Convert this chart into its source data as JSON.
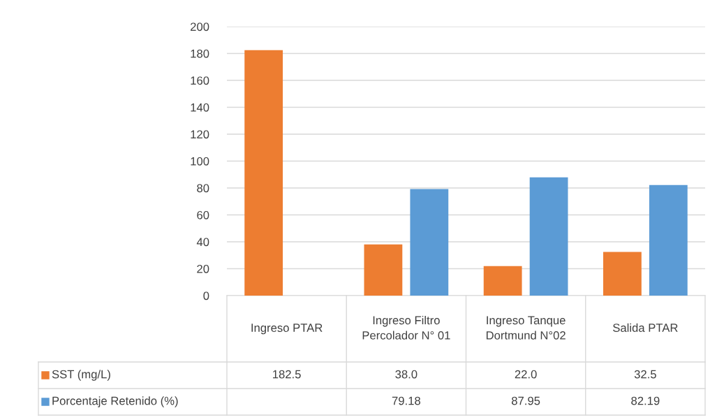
{
  "chart_data": {
    "type": "bar",
    "categories": [
      "Ingreso PTAR",
      "Ingreso Filtro Percolador N° 01",
      "Ingreso Tanque Dortmund N°02",
      "Salida PTAR"
    ],
    "series": [
      {
        "name": "SST (mg/L)",
        "color": "#ed7d31",
        "values": [
          182.5,
          38.0,
          22.0,
          32.5
        ],
        "value_labels": [
          "182.5",
          "38.0",
          "22.0",
          "32.5"
        ]
      },
      {
        "name": "Porcentaje Retenido (%)",
        "color": "#5b9bd5",
        "values": [
          null,
          79.18,
          87.95,
          82.19
        ],
        "value_labels": [
          null,
          "79.18",
          "87.95",
          "82.19"
        ]
      }
    ],
    "ylim": [
      0,
      200
    ],
    "yticks": [
      0,
      20,
      40,
      60,
      80,
      100,
      120,
      140,
      160,
      180,
      200
    ],
    "grid": "y",
    "legend": "bottom"
  }
}
